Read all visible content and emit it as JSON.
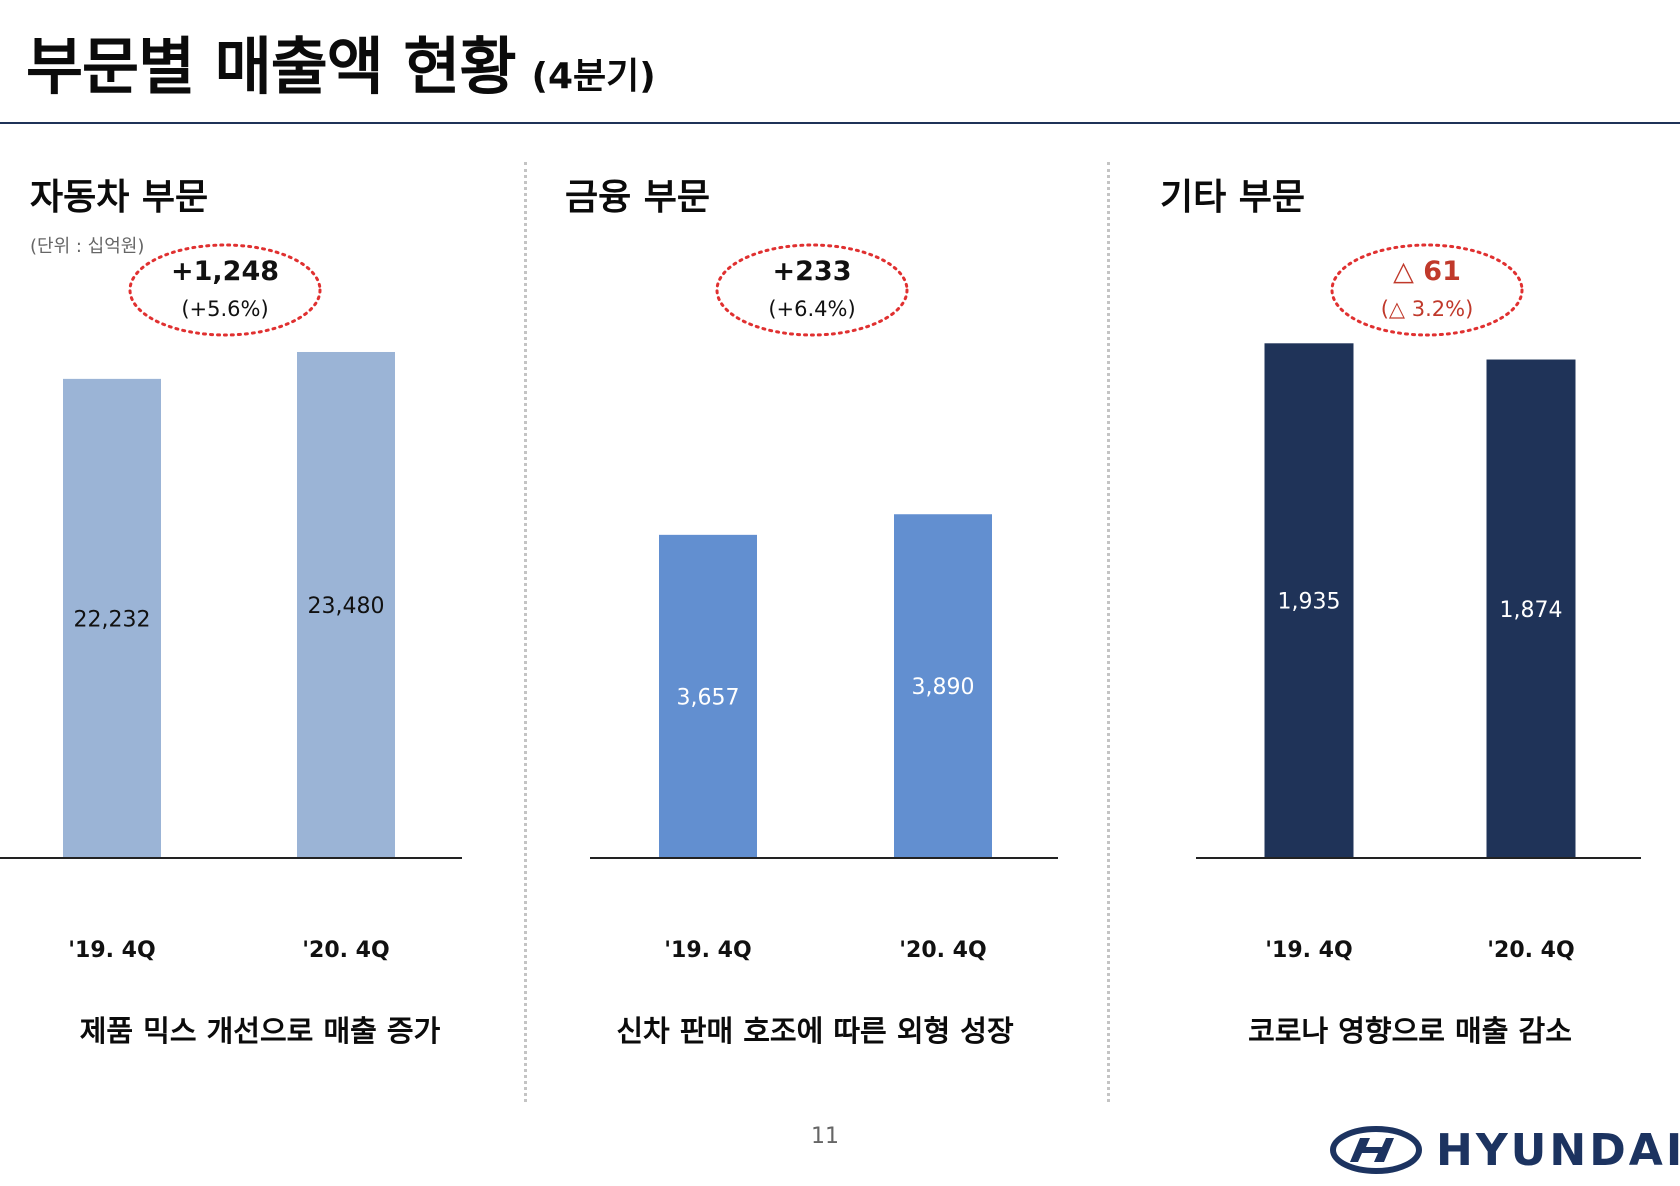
{
  "page": {
    "title": "부문별 매출액 현황",
    "title_suffix": "(4분기)",
    "page_number": "11",
    "logo_text": "HYUNDAI"
  },
  "panels": [
    {
      "title": "자동차 부문",
      "unit": "(단위 : 십억원)",
      "change_main": "+1,248",
      "change_pct": "(+5.6%)",
      "change_color": "#111111",
      "bar_color": "#9bb4d6",
      "value_label_color": "#111111",
      "caption": "제품 믹스 개선으로 매출 증가"
    },
    {
      "title": "금융 부문",
      "unit": "",
      "change_main": "+233",
      "change_pct": "(+6.4%)",
      "change_color": "#111111",
      "bar_color": "#628fd0",
      "value_label_color": "#ffffff",
      "caption": "신차 판매 호조에 따른 외형 성장"
    },
    {
      "title": "기타 부문",
      "unit": "",
      "change_main": "△ 61",
      "change_pct": "(△ 3.2%)",
      "change_color": "#c0392b",
      "bar_color": "#1f3358",
      "value_label_color": "#ffffff",
      "caption": "코로나 영향으로 매출 감소"
    }
  ],
  "colors": {
    "title_rule": "#1f3358",
    "ellipse_dots": "#e03030"
  },
  "chart_data": [
    {
      "type": "bar",
      "title": "자동차 부문",
      "unit": "십억원",
      "categories": [
        "'19. 4Q",
        "'20. 4Q"
      ],
      "values": [
        22232,
        23480
      ],
      "value_labels": [
        "22,232",
        "23,480"
      ],
      "ylim": [
        0,
        24500
      ]
    },
    {
      "type": "bar",
      "title": "금융 부문",
      "unit": "십억원",
      "categories": [
        "'19. 4Q",
        "'20. 4Q"
      ],
      "values": [
        3657,
        3890
      ],
      "value_labels": [
        "3,657",
        "3,890"
      ],
      "ylim": [
        0,
        5975
      ]
    },
    {
      "type": "bar",
      "title": "기타 부문",
      "unit": "십억원",
      "categories": [
        "'19. 4Q",
        "'20. 4Q"
      ],
      "values": [
        1935,
        1874
      ],
      "value_labels": [
        "1,935",
        "1,874"
      ],
      "ylim": [
        0,
        1985
      ]
    }
  ]
}
